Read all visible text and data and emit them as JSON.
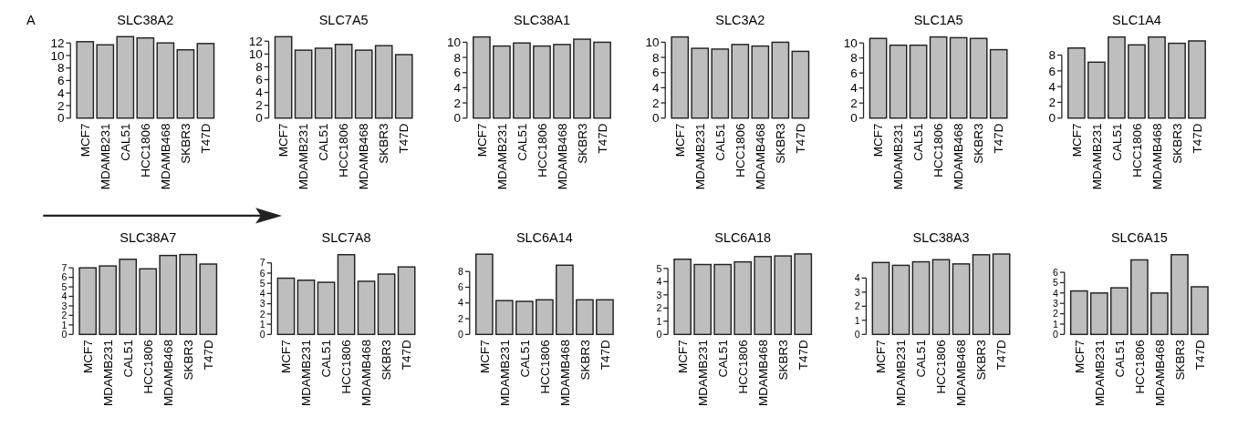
{
  "chart_data": [
    {
      "type": "bar",
      "title": "SLC38A2",
      "annotations": [
        "A"
      ],
      "categories": [
        "MCF7",
        "MDAMB231",
        "CAL51",
        "HCC1806",
        "MDAMB468",
        "SKBR3",
        "T47D"
      ],
      "values": [
        12.2,
        11.7,
        13.0,
        12.8,
        12.0,
        10.9,
        11.9
      ],
      "color": "#bebebe",
      "ylim": [
        0,
        13.2
      ],
      "yticks": [
        0,
        2,
        4,
        6,
        8,
        10,
        12
      ]
    },
    {
      "type": "bar",
      "title": "SLC7A5",
      "categories": [
        "MCF7",
        "MDAMB231",
        "CAL51",
        "HCC1806",
        "MDAMB468",
        "SKBR3",
        "T47D"
      ],
      "values": [
        12.7,
        10.6,
        10.9,
        11.5,
        10.6,
        11.3,
        9.9
      ],
      "color": "#bebebe",
      "ylim": [
        0,
        12.9
      ],
      "yticks": [
        0,
        2,
        4,
        6,
        8,
        10,
        12
      ]
    },
    {
      "type": "bar",
      "title": "SLC38A1",
      "categories": [
        "MCF7",
        "MDAMB231",
        "CAL51",
        "HCC1806",
        "MDAMB468",
        "SKBR3",
        "T47D"
      ],
      "values": [
        10.7,
        9.5,
        9.9,
        9.5,
        9.7,
        10.4,
        10.0
      ],
      "color": "#bebebe",
      "ylim": [
        0,
        10.9
      ],
      "yticks": [
        0,
        2,
        4,
        6,
        8,
        10
      ]
    },
    {
      "type": "bar",
      "title": "SLC3A2",
      "categories": [
        "MCF7",
        "MDAMB231",
        "CAL51",
        "HCC1806",
        "MDAMB468",
        "SKBR3",
        "T47D"
      ],
      "values": [
        10.7,
        9.2,
        9.1,
        9.7,
        9.5,
        10.0,
        8.8
      ],
      "color": "#bebebe",
      "ylim": [
        0,
        10.9
      ],
      "yticks": [
        0,
        2,
        4,
        6,
        8,
        10
      ]
    },
    {
      "type": "bar",
      "title": "SLC1A5",
      "categories": [
        "MCF7",
        "MDAMB231",
        "CAL51",
        "HCC1806",
        "MDAMB468",
        "SKBR3",
        "T47D"
      ],
      "values": [
        10.6,
        9.7,
        9.7,
        10.8,
        10.7,
        10.6,
        9.1
      ],
      "color": "#bebebe",
      "ylim": [
        0,
        11
      ],
      "yticks": [
        0,
        2,
        4,
        6,
        8,
        10
      ]
    },
    {
      "type": "bar",
      "title": "SLC1A4",
      "categories": [
        "MCF7",
        "MDAMB231",
        "CAL51",
        "HCC1806",
        "MDAMB468",
        "SKBR3",
        "T47D"
      ],
      "values": [
        8.9,
        7.1,
        10.3,
        9.3,
        10.3,
        9.5,
        9.8
      ],
      "color": "#bebebe",
      "ylim": [
        0,
        10.5
      ],
      "yticks": [
        0,
        2,
        4,
        6,
        8
      ]
    },
    {
      "type": "bar",
      "title": "SLC38A7",
      "categories": [
        "MCF7",
        "MDAMB231",
        "CAL51",
        "HCC1806",
        "MDAMB468",
        "SKBR3",
        "T47D"
      ],
      "values": [
        7.0,
        7.2,
        7.9,
        6.9,
        8.3,
        8.4,
        7.4
      ],
      "color": "#bebebe",
      "ylim": [
        0,
        8.6
      ],
      "yticks": [
        0,
        1,
        2,
        3,
        4,
        5,
        6,
        7
      ]
    },
    {
      "type": "bar",
      "title": "SLC7A8",
      "categories": [
        "MCF7",
        "MDAMB231",
        "CAL51",
        "HCC1806",
        "MDAMB468",
        "SKBR3",
        "T47D"
      ],
      "values": [
        5.5,
        5.3,
        5.1,
        7.8,
        5.2,
        5.9,
        6.6
      ],
      "color": "#bebebe",
      "ylim": [
        0,
        8
      ],
      "yticks": [
        0,
        1,
        2,
        3,
        4,
        5,
        6,
        7
      ]
    },
    {
      "type": "bar",
      "title": "SLC6A14",
      "categories": [
        "MCF7",
        "MDAMB231",
        "CAL51",
        "HCC1806",
        "MDAMB468",
        "SKBR3",
        "T47D"
      ],
      "values": [
        10.2,
        4.3,
        4.2,
        4.4,
        8.8,
        4.4,
        4.4
      ],
      "color": "#bebebe",
      "ylim": [
        0,
        10.4
      ],
      "yticks": [
        0,
        2,
        4,
        6,
        8
      ]
    },
    {
      "type": "bar",
      "title": "SLC6A18",
      "categories": [
        "MCF7",
        "MDAMB231",
        "CAL51",
        "HCC1806",
        "MDAMB468",
        "SKBR3",
        "T47D"
      ],
      "values": [
        5.7,
        5.3,
        5.3,
        5.5,
        5.9,
        5.95,
        6.1
      ],
      "color": "#bebebe",
      "ylim": [
        0,
        6.2
      ],
      "yticks": [
        0,
        1,
        2,
        3,
        4,
        5
      ]
    },
    {
      "type": "bar",
      "title": "SLC38A3",
      "categories": [
        "MCF7",
        "MDAMB231",
        "CAL51",
        "HCC1806",
        "MDAMB468",
        "SKBR3",
        "T47D"
      ],
      "values": [
        5.1,
        4.9,
        5.15,
        5.3,
        5.0,
        5.65,
        5.7
      ],
      "color": "#bebebe",
      "ylim": [
        0,
        5.8
      ],
      "yticks": [
        0,
        1,
        2,
        3,
        4
      ]
    },
    {
      "type": "bar",
      "title": "SLC6A15",
      "categories": [
        "MCF7",
        "MDAMB231",
        "CAL51",
        "HCC1806",
        "MDAMB468",
        "SKBR3",
        "T47D"
      ],
      "values": [
        4.2,
        4.0,
        4.5,
        7.2,
        4.0,
        7.7,
        4.6
      ],
      "color": "#bebebe",
      "ylim": [
        0,
        7.9
      ],
      "yticks": [
        0,
        1,
        2,
        3,
        4,
        5,
        6
      ]
    }
  ]
}
